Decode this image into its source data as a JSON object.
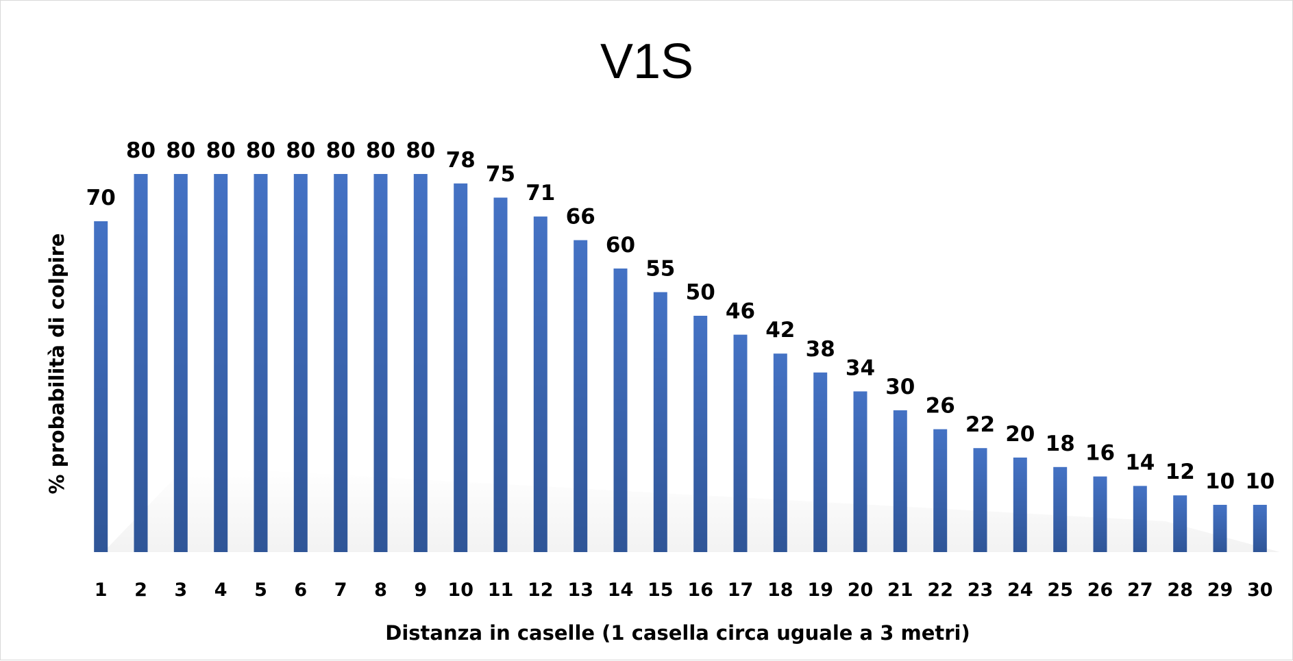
{
  "chart_data": {
    "type": "bar",
    "title": "V1S",
    "xlabel": "Distanza in caselle (1 casella circa uguale a 3 metri)",
    "ylabel": "% probabilità di colpire",
    "categories": [
      "1",
      "2",
      "3",
      "4",
      "5",
      "6",
      "7",
      "8",
      "9",
      "10",
      "11",
      "12",
      "13",
      "14",
      "15",
      "16",
      "17",
      "18",
      "19",
      "20",
      "21",
      "22",
      "23",
      "24",
      "25",
      "26",
      "27",
      "28",
      "29",
      "30"
    ],
    "values": [
      70,
      80,
      80,
      80,
      80,
      80,
      80,
      80,
      80,
      78,
      75,
      71,
      66,
      60,
      55,
      50,
      46,
      42,
      38,
      34,
      30,
      26,
      22,
      20,
      18,
      16,
      14,
      12,
      10,
      10
    ],
    "ylim": [
      0,
      80
    ],
    "grid": false,
    "legend": "none",
    "data_labels": true,
    "bar_color": "#4472c4",
    "bar_color_dark": "#2f5597"
  }
}
